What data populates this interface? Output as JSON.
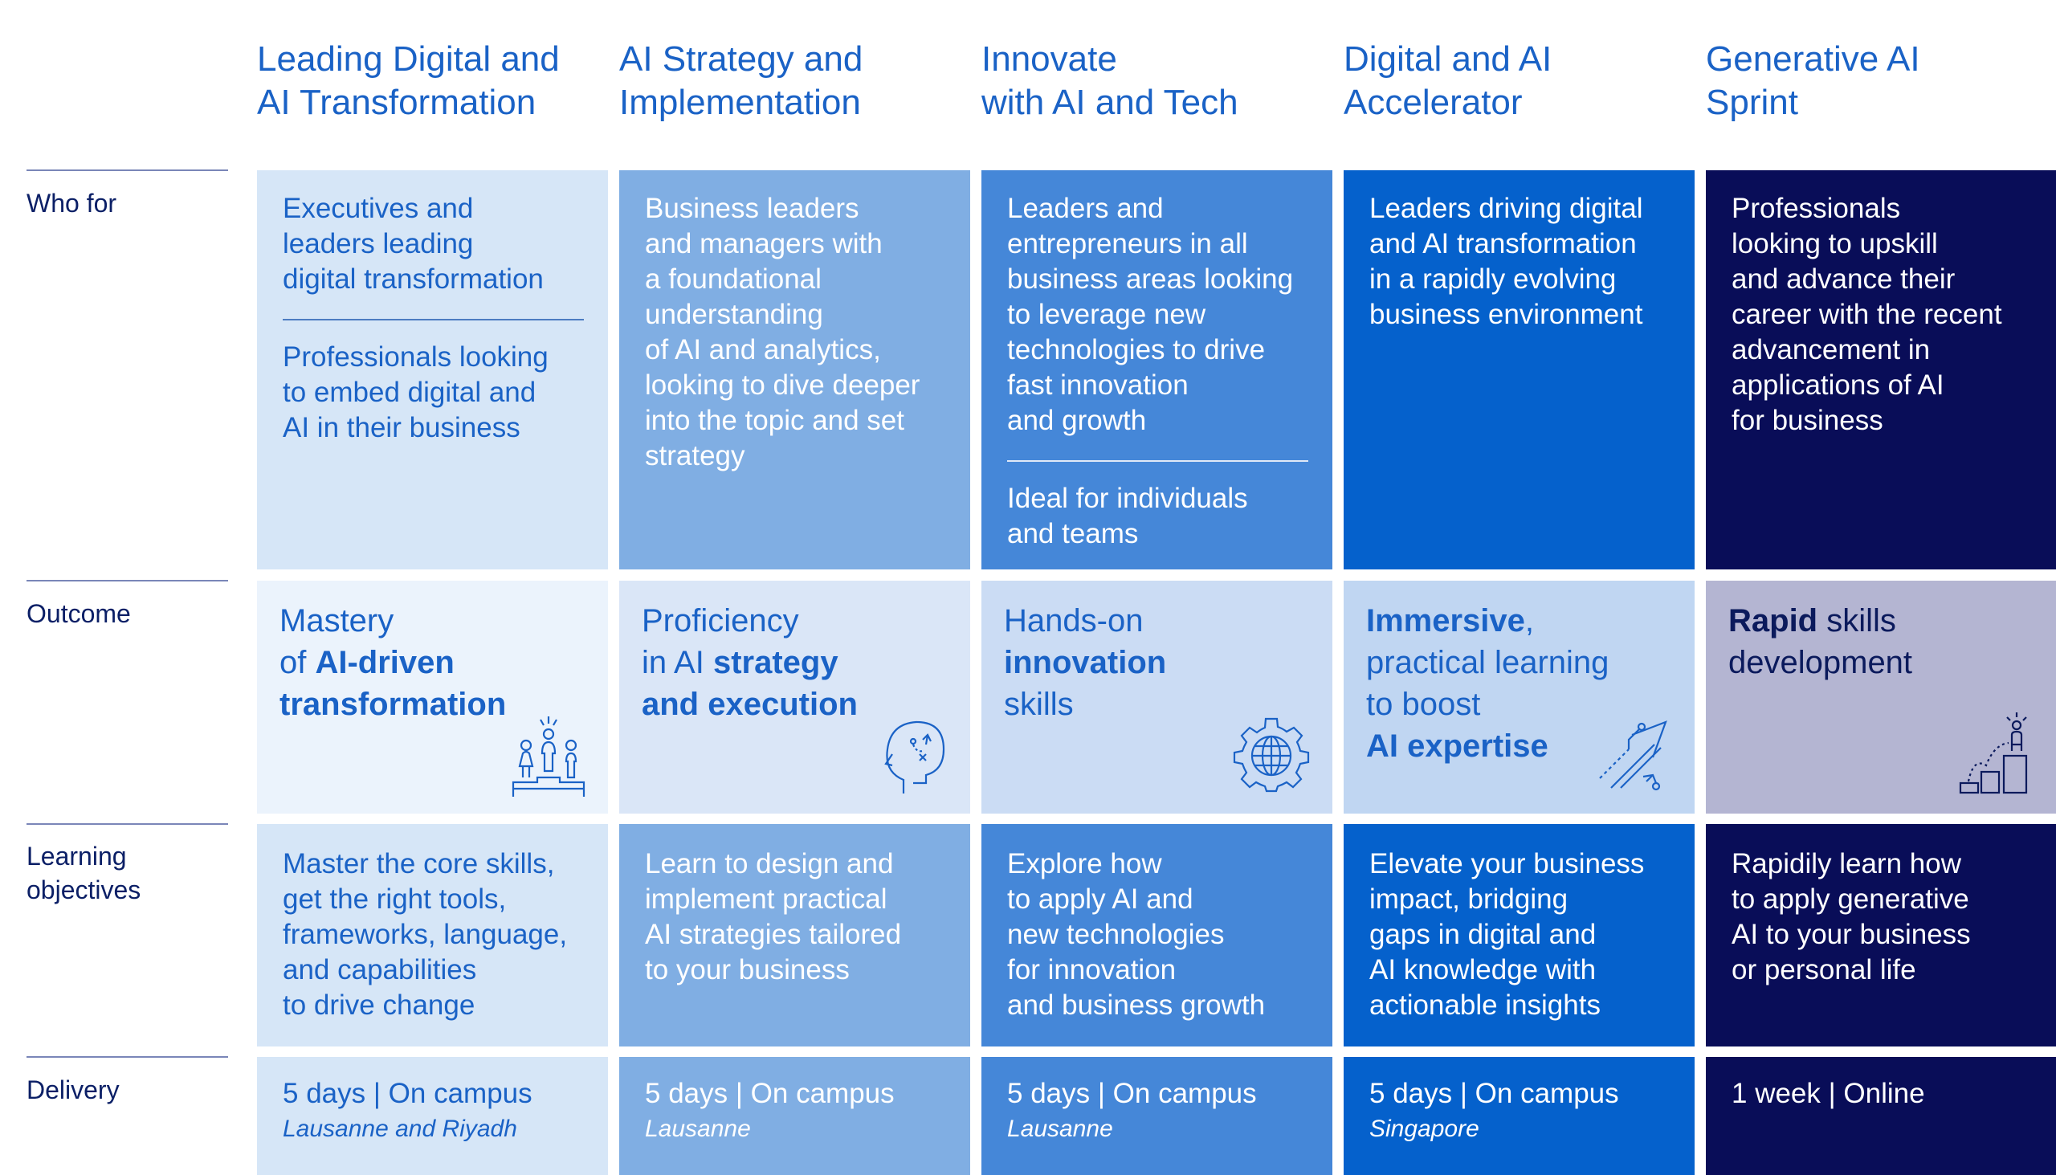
{
  "columns": [
    {
      "title_l1": "Leading Digital and",
      "title_l2": "AI Transformation"
    },
    {
      "title_l1": "AI Strategy and",
      "title_l2": "Implementation"
    },
    {
      "title_l1": "Innovate",
      "title_l2": "with AI and Tech"
    },
    {
      "title_l1": "Digital and AI",
      "title_l2": "Accelerator"
    },
    {
      "title_l1": "Generative AI",
      "title_l2": "Sprint"
    }
  ],
  "row_labels": {
    "who_for": "Who for",
    "outcome": "Outcome",
    "learning_l1": "Learning",
    "learning_l2": "objectives",
    "delivery": "Delivery"
  },
  "who_for": [
    {
      "lines_a": [
        "Executives and",
        "leaders leading",
        "digital transformation"
      ],
      "lines_b": [
        "Professionals looking",
        "to embed digital and",
        "AI in their business"
      ]
    },
    {
      "lines_a": [
        "Business leaders",
        "and managers with",
        "a foundational",
        "understanding",
        "of AI and analytics,",
        "looking to dive deeper",
        "into the topic and set",
        "strategy"
      ]
    },
    {
      "lines_a": [
        "Leaders and",
        "entrepreneurs in all",
        "business areas looking",
        "to leverage new",
        "technologies to drive",
        "fast innovation",
        "and growth"
      ],
      "lines_b": [
        "Ideal for individuals",
        "and teams"
      ]
    },
    {
      "lines_a": [
        "Leaders driving digital",
        "and AI transformation",
        "in a rapidly evolving",
        "business environment"
      ]
    },
    {
      "lines_a": [
        "Professionals",
        "looking to upskill",
        "and advance their",
        "career with the recent",
        "advancement in",
        "applications of AI",
        "for business"
      ]
    }
  ],
  "outcome": [
    {
      "l1": "Mastery",
      "l2a": "of ",
      "l2b": "AI-driven",
      "l3": "transformation",
      "icon": "podium-people-icon"
    },
    {
      "l1": "Proficiency",
      "l2a": "in AI ",
      "l2b": "strategy",
      "l3": "and execution",
      "icon": "head-strategy-icon"
    },
    {
      "l1": "Hands-on",
      "l2": "innovation",
      "l3": "skills",
      "icon": "globe-gear-icon"
    },
    {
      "l1a": "Immersive",
      "l1b": ",",
      "l2": "practical learning",
      "l3": "to boost",
      "l4": "AI expertise",
      "icon": "rising-arrows-icon"
    },
    {
      "l1a": "Rapid",
      "l1b": " skills",
      "l2": "development",
      "icon": "climbing-steps-icon"
    }
  ],
  "learning": [
    [
      "Master the core skills,",
      "get the right tools,",
      "frameworks, language,",
      "and capabilities",
      "to drive change"
    ],
    [
      "Learn to design and",
      "implement practical",
      "AI strategies tailored",
      "to your business"
    ],
    [
      "Explore how",
      "to apply AI and",
      "new technologies",
      "for innovation",
      "and business growth"
    ],
    [
      "Elevate your business",
      "impact, bridging",
      "gaps in digital and",
      "AI knowledge with",
      "actionable insights"
    ],
    [
      "Rapidily learn how",
      "to apply generative",
      "AI to your business",
      "or personal life"
    ]
  ],
  "delivery": [
    {
      "format": "5 days | On campus",
      "location": "Lausanne and Riyadh"
    },
    {
      "format": "5 days | On campus",
      "location": "Lausanne"
    },
    {
      "format": "5 days | On campus",
      "location": "Lausanne"
    },
    {
      "format": "5 days | On campus",
      "location": "Singapore"
    },
    {
      "format": "1 week | Online",
      "location": ""
    }
  ],
  "colors": {
    "col1_bg": "#d6e6f7",
    "col1_text": "#1a62c6",
    "col2_bg": "#80aee3",
    "col3_bg": "#4587d8",
    "col4_bg": "#0561cc",
    "col5_bg": "#090d58",
    "out1_bg": "#ebf3fc",
    "out2_bg": "#dae6f7",
    "out3_bg": "#cbdcf4",
    "out4_bg": "#c0d6f2",
    "out5_bg": "#b4b5d2",
    "out5_text": "#0b1a5c"
  }
}
